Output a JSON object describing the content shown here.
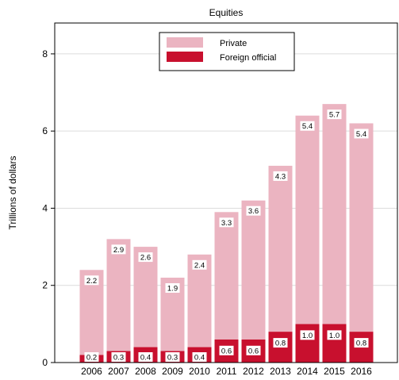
{
  "chart_data": {
    "type": "bar",
    "stacked": true,
    "title": "Equities",
    "xlabel": "",
    "ylabel": "Trillions of dollars",
    "ylim": [
      0,
      8.8
    ],
    "yticks": [
      0,
      2,
      4,
      6,
      8
    ],
    "grid": "horizontal",
    "legend_position": "top-center",
    "categories": [
      "2006",
      "2007",
      "2008",
      "2009",
      "2010",
      "2011",
      "2012",
      "2013",
      "2014",
      "2015",
      "2016"
    ],
    "series": [
      {
        "name": "Foreign official",
        "color": "#c8102e",
        "values": [
          0.2,
          0.3,
          0.4,
          0.3,
          0.4,
          0.6,
          0.6,
          0.8,
          1.0,
          1.0,
          0.8
        ]
      },
      {
        "name": "Private",
        "color": "#ebb4c1",
        "values": [
          2.2,
          2.9,
          2.6,
          1.9,
          2.4,
          3.3,
          3.6,
          4.3,
          5.4,
          5.7,
          5.4
        ]
      }
    ],
    "legend_order": [
      "Private",
      "Foreign official"
    ]
  }
}
